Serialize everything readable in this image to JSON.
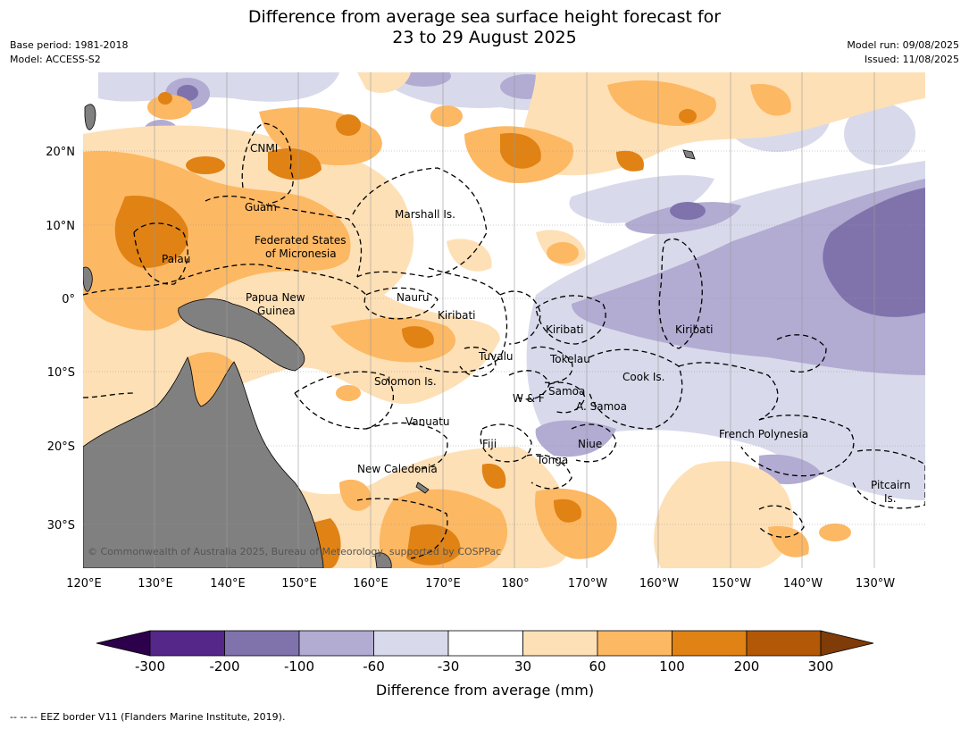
{
  "title_line1": "Difference from average sea surface height forecast for",
  "title_line2": "23 to 29 August 2025",
  "meta_left": {
    "base_period": "Base period: 1981-2018",
    "model": "Model: ACCESS-S2"
  },
  "meta_right": {
    "model_run": "Model run: 09/08/2025",
    "issued": "Issued: 11/08/2025"
  },
  "longitude_labels": [
    "120°E",
    "130°E",
    "140°E",
    "150°E",
    "160°E",
    "170°E",
    "180°",
    "170°W",
    "160°W",
    "150°W",
    "140°W",
    "130°W"
  ],
  "latitude_labels": [
    "20°N",
    "10°N",
    "0°",
    "10°S",
    "20°S",
    "30°S"
  ],
  "place_labels": [
    {
      "text": "CNMI"
    },
    {
      "text": "Guam"
    },
    {
      "text": "Marshall Is."
    },
    {
      "text": "Federated States"
    },
    {
      "text": "of Micronesia"
    },
    {
      "text": "Palau"
    },
    {
      "text": "Papua New"
    },
    {
      "text": "Guinea"
    },
    {
      "text": "Nauru"
    },
    {
      "text": "Kiribati"
    },
    {
      "text": "Kiribati"
    },
    {
      "text": "Kiribati"
    },
    {
      "text": "Tuvalu"
    },
    {
      "text": "Tokelau"
    },
    {
      "text": "Cook Is."
    },
    {
      "text": "Solomon Is."
    },
    {
      "text": "W & F"
    },
    {
      "text": "Samoa"
    },
    {
      "text": "A. Samoa"
    },
    {
      "text": "Vanuatu"
    },
    {
      "text": "Fiji"
    },
    {
      "text": "Niue"
    },
    {
      "text": "Tonga"
    },
    {
      "text": "French Polynesia"
    },
    {
      "text": "New Caledonia"
    },
    {
      "text": "Pitcairn"
    },
    {
      "text": "Is."
    }
  ],
  "copyright": "© Commonwealth of Australia 2025, Bureau of Meteorology, supported by COSPPac",
  "colorbar": {
    "ticks": [
      "-300",
      "-200",
      "-100",
      "-60",
      "-30",
      "30",
      "60",
      "100",
      "200",
      "300"
    ],
    "label": "Difference from average (mm)",
    "colors": [
      "#2d004b",
      "#542788",
      "#8073ac",
      "#b2abd2",
      "#d8daeb",
      "#ffffff",
      "#fee0b6",
      "#fdb863",
      "#e08214",
      "#b35806",
      "#7f3b08"
    ]
  },
  "footnote": "--  --  -- EEZ border V11 (Flanders Marine Institute, 2019).",
  "colors": {
    "land": "#808080",
    "grid": "#999999",
    "eez": "#000000"
  }
}
